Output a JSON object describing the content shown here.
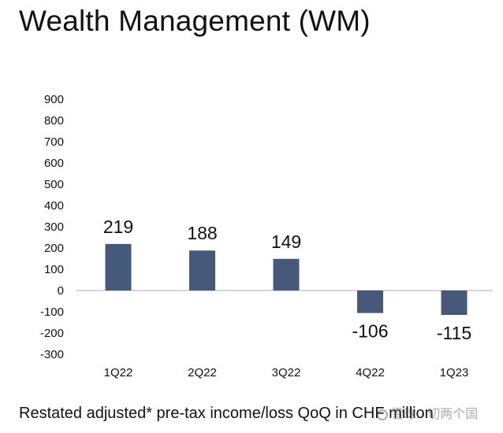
{
  "title": "Wealth Management (WM)",
  "caption": "Restated adjusted* pre-tax income/loss QoQ in CHF million",
  "watermark": "雪球 · 切两个国",
  "chart_data": {
    "type": "bar",
    "title": "",
    "xlabel": "",
    "ylabel": "",
    "categories": [
      "1Q22",
      "2Q22",
      "3Q22",
      "4Q22",
      "1Q23"
    ],
    "values": [
      219,
      188,
      149,
      -106,
      -115
    ],
    "data_labels": [
      "219",
      "188",
      "149",
      "-106",
      "-115"
    ],
    "ylim": [
      -300,
      900
    ],
    "yticks": [
      900,
      800,
      700,
      600,
      500,
      400,
      300,
      200,
      100,
      0,
      -100,
      -200,
      -300
    ],
    "ytick_labels": [
      "900",
      "800",
      "700",
      "600",
      "500",
      "400",
      "300",
      "200",
      "100",
      "0",
      "-100",
      "-200",
      "-300"
    ],
    "grid": false,
    "legend": "none",
    "bar_color": "#46597a",
    "zero_line_color": "#c8c8c8"
  }
}
